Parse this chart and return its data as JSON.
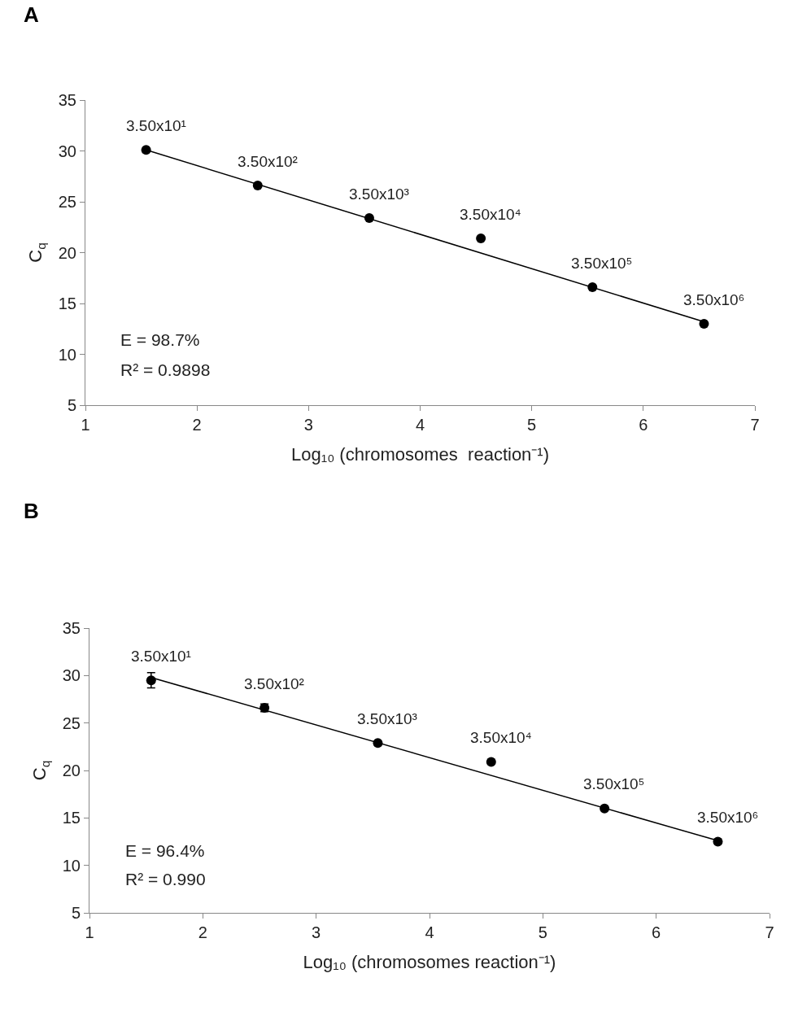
{
  "chart_data": [
    {
      "type": "scatter",
      "title": "A",
      "xlabel": "Log₁₀ (chromosomes  reaction⁻¹)",
      "ylabel": "C$_{q}$",
      "marker": "circle",
      "grid": false,
      "xlim": [
        1,
        7
      ],
      "xticks": [
        1,
        2,
        3,
        4,
        5,
        6,
        7
      ],
      "ylim": [
        5,
        35
      ],
      "yticks": [
        5,
        10,
        15,
        20,
        25,
        30,
        35
      ],
      "series": [
        {
          "type": "scatter",
          "color": "#000000",
          "x": [
            1.544,
            2.544,
            3.544,
            4.544,
            5.544,
            6.544
          ],
          "values": [
            30.1,
            26.6,
            23.4,
            21.4,
            16.6,
            13.0
          ]
        },
        {
          "type": "line",
          "marker": "none",
          "color": "#000000",
          "x": [
            1.544,
            6.544
          ],
          "values": [
            30.1,
            13.2
          ]
        }
      ],
      "annotations": [
        {
          "text": "3.50x10¹",
          "x": 1.544,
          "y": 30.1
        },
        {
          "text": "3.50x10²",
          "x": 2.544,
          "y": 26.6
        },
        {
          "text": "3.50x10³",
          "x": 3.544,
          "y": 23.4
        },
        {
          "text": "3.50x10⁴",
          "x": 4.544,
          "y": 21.4
        },
        {
          "text": "3.50x10⁵",
          "x": 5.544,
          "y": 16.6
        },
        {
          "text": "3.50x10⁶",
          "x": 6.544,
          "y": 13.0
        },
        "E = 98.7%",
        "R² = 0.9898"
      ]
    },
    {
      "type": "scatter",
      "title": "B",
      "xlabel": "Log₁₀ (chromosomes reaction⁻¹)",
      "ylabel": "C$_{q}$",
      "marker": "circle",
      "grid": false,
      "xlim": [
        1,
        7
      ],
      "xticks": [
        1,
        2,
        3,
        4,
        5,
        6,
        7
      ],
      "ylim": [
        5,
        35
      ],
      "yticks": [
        5,
        10,
        15,
        20,
        25,
        30,
        35
      ],
      "series": [
        {
          "type": "scatter",
          "color": "#000000",
          "x": [
            1.544,
            2.544,
            3.544,
            4.544,
            5.544,
            6.544
          ],
          "values": [
            29.5,
            26.6,
            22.9,
            20.9,
            16.0,
            12.5
          ],
          "errors": [
            0.8,
            0.4,
            null,
            null,
            null,
            null
          ]
        },
        {
          "type": "line",
          "marker": "none",
          "color": "#000000",
          "x": [
            1.544,
            6.544
          ],
          "values": [
            29.8,
            12.6
          ]
        }
      ],
      "annotations": [
        {
          "text": "3.50x10¹",
          "x": 1.544,
          "y": 29.5
        },
        {
          "text": "3.50x10²",
          "x": 2.544,
          "y": 26.6
        },
        {
          "text": "3.50x10³",
          "x": 3.544,
          "y": 22.9
        },
        {
          "text": "3.50x10⁴",
          "x": 4.544,
          "y": 20.9
        },
        {
          "text": "3.50x10⁵",
          "x": 5.544,
          "y": 16.0
        },
        {
          "text": "3.50x10⁶",
          "x": 6.544,
          "y": 12.5
        },
        "E = 96.4%",
        "R² = 0.990"
      ]
    }
  ]
}
